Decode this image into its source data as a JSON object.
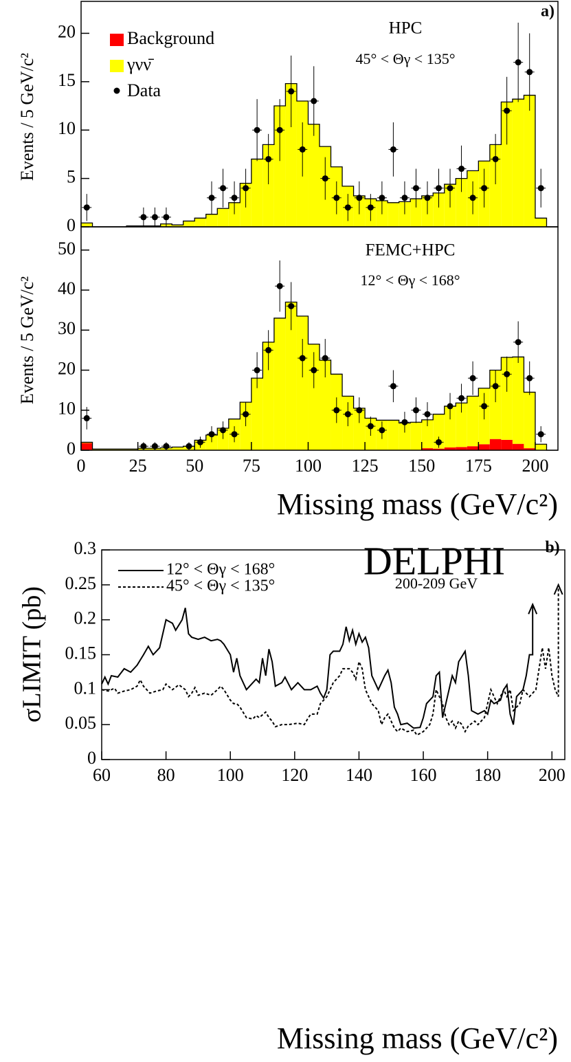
{
  "chart_data": [
    {
      "type": "histogram",
      "label": "a)",
      "annotation": "HPC",
      "angle_range": "45° < Θγ < 135°",
      "ylabel": "Events / 5 GeV/c²",
      "bins": [
        0,
        5,
        10,
        15,
        20,
        25,
        30,
        35,
        40,
        45,
        50,
        55,
        60,
        65,
        70,
        75,
        80,
        85,
        90,
        95,
        100,
        105,
        110,
        115,
        120,
        125,
        130,
        135,
        140,
        145,
        150,
        155,
        160,
        165,
        170,
        175,
        180,
        185,
        190,
        195,
        200,
        205,
        210
      ],
      "xlim": [
        0,
        210
      ],
      "ylim": [
        0,
        23.3
      ],
      "yticks": [
        0,
        5,
        10,
        15,
        20
      ],
      "series": [
        {
          "name": "Background",
          "color": "#ff0000",
          "values": [
            0,
            0,
            0,
            0,
            0,
            0,
            0,
            0,
            0,
            0,
            0,
            0,
            0,
            0,
            0,
            0,
            0,
            0,
            0,
            0,
            0,
            0,
            0,
            0,
            0,
            0,
            0,
            0,
            0,
            0,
            0,
            0,
            0,
            0,
            0,
            0,
            0,
            0,
            0,
            0,
            0,
            0
          ]
        },
        {
          "name": "γνν̄",
          "color": "#ffff00",
          "values": [
            0.4,
            0,
            0,
            0,
            0.1,
            0.1,
            0.1,
            0.3,
            0.2,
            0.6,
            0.9,
            1.3,
            1.9,
            2.5,
            4.5,
            7.0,
            8.5,
            12.5,
            14.8,
            13.0,
            10.6,
            8.3,
            6.2,
            4.2,
            3.2,
            2.9,
            2.7,
            2.5,
            2.6,
            2.9,
            3.2,
            3.5,
            4.4,
            5.0,
            5.8,
            6.8,
            8.5,
            12.9,
            13.2,
            13.6,
            0.9,
            0
          ]
        }
      ],
      "data": {
        "name": "Data",
        "color": "#000000",
        "x": [
          2.5,
          27.5,
          32.5,
          37.5,
          57.5,
          62.5,
          67.5,
          72.5,
          77.5,
          82.5,
          87.5,
          92.5,
          97.5,
          102.5,
          107.5,
          112.5,
          117.5,
          122.5,
          127.5,
          132.5,
          137.5,
          142.5,
          147.5,
          152.5,
          157.5,
          162.5,
          167.5,
          172.5,
          177.5,
          182.5,
          187.5,
          192.5,
          197.5,
          202.5
        ],
        "values": [
          2,
          1,
          1,
          1,
          3,
          4,
          3,
          4,
          10,
          7,
          10,
          14,
          8,
          13,
          5,
          3,
          2,
          3,
          2,
          3,
          8,
          3,
          4,
          3,
          4,
          4,
          6,
          3,
          4,
          7,
          12,
          17,
          16,
          4
        ],
        "errors": [
          1.4,
          1,
          1,
          1,
          1.7,
          2,
          1.7,
          2,
          3.2,
          2.6,
          3.2,
          3.7,
          2.8,
          3.6,
          2.2,
          1.7,
          1.4,
          1.7,
          1.4,
          1.7,
          2.8,
          1.7,
          2,
          1.7,
          2,
          2,
          2.4,
          1.7,
          2,
          2.6,
          3.5,
          4.1,
          4,
          2
        ]
      }
    },
    {
      "type": "histogram",
      "annotation": "FEMC+HPC",
      "angle_range": "12° < Θγ < 168°",
      "ylabel": "Events / 5 GeV/c²",
      "xlabel": "Missing mass (GeV/c²)",
      "bins": [
        0,
        5,
        10,
        15,
        20,
        25,
        30,
        35,
        40,
        45,
        50,
        55,
        60,
        65,
        70,
        75,
        80,
        85,
        90,
        95,
        100,
        105,
        110,
        115,
        120,
        125,
        130,
        135,
        140,
        145,
        150,
        155,
        160,
        165,
        170,
        175,
        180,
        185,
        190,
        195,
        200,
        205,
        210
      ],
      "xlim": [
        0,
        210
      ],
      "ylim": [
        0,
        55.8
      ],
      "xticks": [
        0,
        25,
        50,
        75,
        100,
        125,
        150,
        175,
        200
      ],
      "yticks": [
        0,
        10,
        20,
        30,
        40,
        50
      ],
      "series": [
        {
          "name": "Background",
          "color": "#ff0000",
          "values": [
            1.8,
            0,
            0,
            0,
            0,
            0,
            0,
            0,
            0,
            0,
            0.1,
            0.1,
            0.1,
            0.1,
            0.1,
            0.1,
            0.1,
            0.1,
            0.1,
            0.1,
            0.1,
            0.1,
            0.1,
            0.1,
            0.1,
            0.1,
            0.1,
            0.1,
            0.1,
            0.1,
            0.5,
            0.4,
            0.7,
            0.8,
            1.0,
            1.5,
            2.8,
            2.6,
            1.6,
            0.5,
            0,
            0
          ]
        },
        {
          "name": "γνν̄",
          "color": "#ffff00",
          "values": [
            0.2,
            0.3,
            0.3,
            0.3,
            0.3,
            0.5,
            0.5,
            0.6,
            0.8,
            1.0,
            2.4,
            3.7,
            5.4,
            7.7,
            11.9,
            17.9,
            26.9,
            32.9,
            36.9,
            33.4,
            26.4,
            22.4,
            18.9,
            13.4,
            10.4,
            7.9,
            7.4,
            7.4,
            6.7,
            6.9,
            7.1,
            8.6,
            10.3,
            11.0,
            12.5,
            14.0,
            17.2,
            20.6,
            21.7,
            14.0,
            1.5,
            0
          ]
        }
      ],
      "data": {
        "name": "Data",
        "color": "#000000",
        "x": [
          2.5,
          27.5,
          32.5,
          37.5,
          47.5,
          52.5,
          57.5,
          62.5,
          67.5,
          72.5,
          77.5,
          82.5,
          87.5,
          92.5,
          97.5,
          102.5,
          107.5,
          112.5,
          117.5,
          122.5,
          127.5,
          132.5,
          137.5,
          142.5,
          147.5,
          152.5,
          157.5,
          162.5,
          167.5,
          172.5,
          177.5,
          182.5,
          187.5,
          192.5,
          197.5,
          202.5
        ],
        "values": [
          8,
          1,
          1,
          1,
          1,
          2,
          4,
          5,
          4,
          9,
          20,
          25,
          41,
          36,
          23,
          20,
          23,
          10,
          9,
          10,
          6,
          5,
          16,
          7,
          10,
          9,
          2,
          11,
          13,
          18,
          11,
          16,
          19,
          27,
          18,
          4
        ],
        "errors": [
          2.8,
          1,
          1,
          1,
          1,
          1.4,
          2,
          2.2,
          2,
          3,
          4.5,
          5,
          6.4,
          6,
          4.8,
          4.5,
          4.8,
          3.2,
          3,
          3.2,
          2.4,
          2.2,
          4,
          2.6,
          3.2,
          3,
          1.4,
          3.3,
          3.6,
          4.2,
          3.3,
          4,
          4.4,
          5.2,
          4.2,
          2
        ]
      }
    },
    {
      "type": "line",
      "label": "b)",
      "annotation": "DELPHI",
      "subtitle": "200-209 GeV",
      "ylabel": "σLIMIT (pb)",
      "xlabel": "Missing mass (GeV/c²)",
      "xlim": [
        60,
        204
      ],
      "ylim": [
        0,
        0.3
      ],
      "xticks": [
        60,
        80,
        100,
        120,
        140,
        160,
        180,
        200
      ],
      "yticks": [
        0,
        0.05,
        0.1,
        0.15,
        0.2,
        0.25,
        0.3
      ],
      "series": [
        {
          "name": "12° < Θγ < 168°",
          "color": "#000000",
          "dash": "none",
          "x": [
            60,
            61,
            62,
            63,
            65,
            67,
            69,
            71,
            73,
            74.5,
            76,
            78,
            79,
            80,
            82,
            83,
            85,
            86,
            87,
            88,
            90,
            92,
            94,
            96,
            97,
            98,
            100,
            101,
            102,
            103,
            105,
            107,
            108,
            109,
            110,
            111,
            112,
            113,
            114,
            116,
            117,
            119,
            121,
            123,
            125,
            127,
            128,
            129,
            130,
            131,
            132,
            134,
            135,
            136,
            137,
            138,
            139,
            140,
            141,
            142,
            143,
            144,
            146,
            147,
            148,
            149,
            150,
            151,
            152,
            153,
            155,
            157,
            159,
            160,
            161,
            163,
            164,
            165,
            166,
            167,
            169,
            170,
            171,
            173,
            174,
            175,
            177,
            179,
            180,
            181,
            182,
            184,
            185,
            186,
            187,
            188,
            189,
            190,
            191,
            192,
            193,
            194,
            194
          ],
          "values": [
            0.108,
            0.118,
            0.108,
            0.12,
            0.118,
            0.13,
            0.125,
            0.135,
            0.15,
            0.162,
            0.15,
            0.16,
            0.18,
            0.2,
            0.195,
            0.185,
            0.2,
            0.217,
            0.18,
            0.175,
            0.172,
            0.175,
            0.17,
            0.172,
            0.17,
            0.165,
            0.15,
            0.125,
            0.145,
            0.12,
            0.1,
            0.11,
            0.115,
            0.11,
            0.145,
            0.12,
            0.158,
            0.14,
            0.105,
            0.11,
            0.118,
            0.1,
            0.11,
            0.1,
            0.1,
            0.105,
            0.095,
            0.088,
            0.1,
            0.15,
            0.155,
            0.155,
            0.165,
            0.19,
            0.17,
            0.185,
            0.165,
            0.18,
            0.168,
            0.175,
            0.16,
            0.12,
            0.1,
            0.11,
            0.12,
            0.128,
            0.11,
            0.075,
            0.065,
            0.05,
            0.052,
            0.045,
            0.046,
            0.06,
            0.08,
            0.09,
            0.12,
            0.125,
            0.06,
            0.08,
            0.12,
            0.11,
            0.14,
            0.155,
            0.12,
            0.07,
            0.065,
            0.07,
            0.065,
            0.085,
            0.08,
            0.085,
            0.1,
            0.107,
            0.065,
            0.05,
            0.09,
            0.095,
            0.1,
            0.12,
            0.15,
            0.15,
            0.222
          ]
        },
        {
          "name": "45° < Θγ < 135°",
          "color": "#000000",
          "dash": "4,3",
          "x": [
            60,
            62,
            64,
            65,
            67,
            69,
            71,
            72,
            73,
            75,
            77,
            79,
            80,
            82,
            84,
            86,
            87,
            88,
            89,
            90,
            92,
            94,
            96,
            97,
            98,
            100,
            101,
            102,
            103,
            105,
            107,
            108,
            109,
            111,
            112,
            113,
            114,
            116,
            118,
            121,
            123,
            124,
            125,
            127,
            128,
            130,
            132,
            134,
            135,
            137,
            138,
            139,
            140,
            141,
            142,
            144,
            146,
            147,
            148,
            149,
            150,
            151,
            152,
            153,
            155,
            157,
            158,
            160,
            162,
            163,
            164,
            165,
            166,
            167,
            168,
            169,
            170,
            171,
            172,
            173,
            174,
            176,
            177,
            178,
            179,
            180,
            181,
            182,
            183,
            184,
            185,
            186,
            187,
            188,
            190,
            191,
            193,
            195,
            197,
            198,
            199,
            200,
            201,
            202,
            202
          ],
          "values": [
            0.1,
            0.098,
            0.102,
            0.095,
            0.098,
            0.1,
            0.105,
            0.114,
            0.105,
            0.095,
            0.098,
            0.1,
            0.108,
            0.1,
            0.107,
            0.1,
            0.09,
            0.095,
            0.103,
            0.092,
            0.095,
            0.092,
            0.1,
            0.105,
            0.1,
            0.085,
            0.08,
            0.08,
            0.075,
            0.06,
            0.058,
            0.063,
            0.06,
            0.068,
            0.06,
            0.055,
            0.047,
            0.05,
            0.05,
            0.052,
            0.05,
            0.058,
            0.065,
            0.065,
            0.08,
            0.09,
            0.11,
            0.12,
            0.13,
            0.13,
            0.125,
            0.115,
            0.14,
            0.13,
            0.1,
            0.08,
            0.07,
            0.05,
            0.06,
            0.065,
            0.055,
            0.045,
            0.04,
            0.045,
            0.04,
            0.042,
            0.035,
            0.04,
            0.05,
            0.065,
            0.1,
            0.09,
            0.08,
            0.06,
            0.05,
            0.055,
            0.045,
            0.055,
            0.05,
            0.04,
            0.048,
            0.055,
            0.05,
            0.055,
            0.06,
            0.08,
            0.1,
            0.09,
            0.08,
            0.09,
            0.1,
            0.09,
            0.1,
            0.07,
            0.08,
            0.1,
            0.09,
            0.1,
            0.16,
            0.13,
            0.16,
            0.12,
            0.1,
            0.09,
            0.25
          ]
        }
      ]
    }
  ]
}
